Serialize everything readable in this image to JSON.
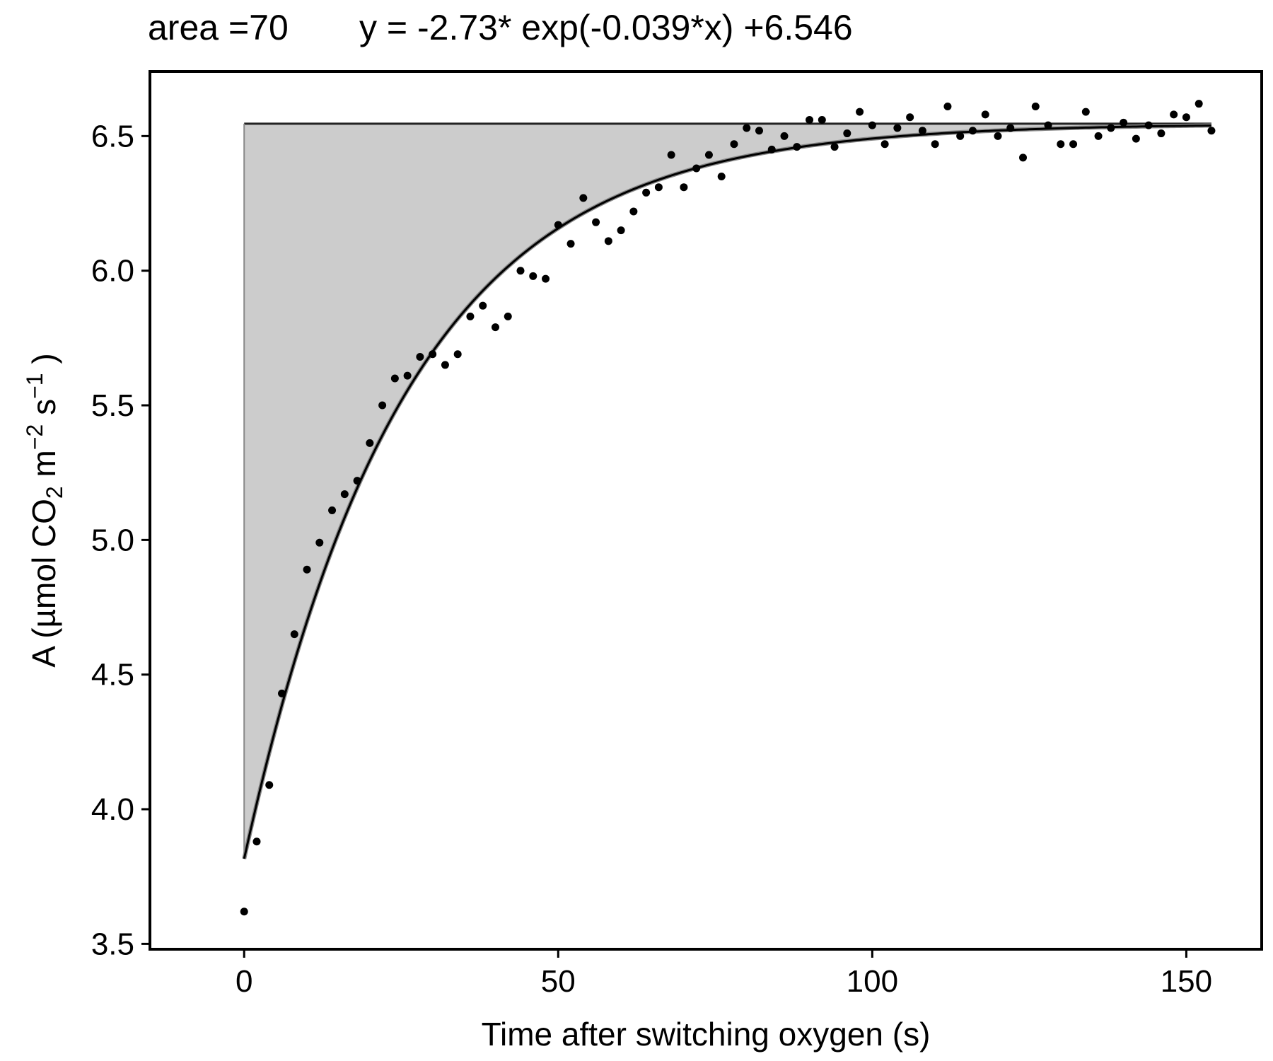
{
  "header": {
    "area_label": "area =70",
    "equation": "y = -2.73* exp(-0.039*x) +6.546"
  },
  "chart_data": {
    "type": "scatter",
    "xlabel": "Time after switching oxygen (s)",
    "ylabel": "A (µmol CO2 m−2 s−1 )",
    "xlim": [
      -15,
      162
    ],
    "ylim": [
      3.48,
      6.74
    ],
    "xticks": [
      0,
      50,
      100,
      150
    ],
    "yticks": [
      3.5,
      4.0,
      4.5,
      5.0,
      5.5,
      6.0,
      6.5
    ],
    "ytick_labels": [
      "3.5",
      "4.0",
      "4.5",
      "5.0",
      "5.5",
      "6.0",
      "6.5"
    ],
    "fit": {
      "a": -2.73,
      "k": -0.039,
      "c": 6.546,
      "x_range": [
        0,
        154
      ]
    },
    "shaded_area": {
      "baseline": 6.546,
      "x_range": [
        0,
        154
      ],
      "color": "#cccccc"
    },
    "colors": {
      "points": "#000000",
      "fit_line": "#000000",
      "fill": "#cccccc",
      "fill_edge": "#888888"
    },
    "points": {
      "x": [
        0,
        2,
        4,
        6,
        8,
        10,
        12,
        14,
        16,
        18,
        20,
        22,
        24,
        26,
        28,
        30,
        32,
        34,
        36,
        38,
        40,
        42,
        44,
        46,
        48,
        50,
        52,
        54,
        56,
        58,
        60,
        62,
        64,
        66,
        68,
        70,
        72,
        74,
        76,
        78,
        80,
        82,
        84,
        86,
        88,
        90,
        92,
        94,
        96,
        98,
        100,
        102,
        104,
        106,
        108,
        110,
        112,
        114,
        116,
        118,
        120,
        122,
        124,
        126,
        128,
        130,
        132,
        134,
        136,
        138,
        140,
        142,
        144,
        146,
        148,
        150,
        152,
        154
      ],
      "y": [
        3.62,
        3.88,
        4.09,
        4.43,
        4.65,
        4.89,
        4.99,
        5.11,
        5.17,
        5.22,
        5.36,
        5.5,
        5.6,
        5.61,
        5.68,
        5.69,
        5.65,
        5.69,
        5.83,
        5.87,
        5.79,
        5.83,
        6.0,
        5.98,
        5.97,
        6.17,
        6.1,
        6.27,
        6.18,
        6.11,
        6.15,
        6.22,
        6.29,
        6.31,
        6.43,
        6.31,
        6.38,
        6.43,
        6.35,
        6.47,
        6.53,
        6.52,
        6.45,
        6.5,
        6.46,
        6.56,
        6.56,
        6.46,
        6.51,
        6.59,
        6.54,
        6.47,
        6.53,
        6.57,
        6.52,
        6.47,
        6.61,
        6.5,
        6.52,
        6.58,
        6.5,
        6.53,
        6.42,
        6.61,
        6.54,
        6.47,
        6.47,
        6.59,
        6.5,
        6.53,
        6.55,
        6.49,
        6.54,
        6.51,
        6.58,
        6.57,
        6.62,
        6.52
      ]
    }
  }
}
